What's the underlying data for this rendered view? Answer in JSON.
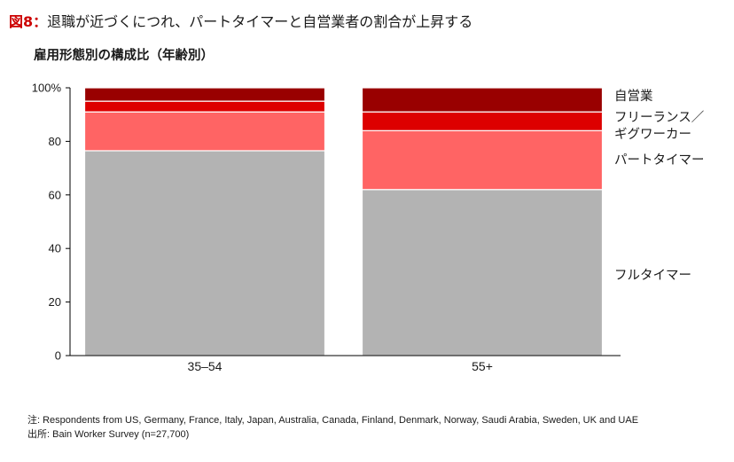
{
  "figure": {
    "label": "図8：",
    "title": "退職が近づくにつれ、パートタイマーと自営業者の割合が上昇する",
    "subtitle": "雇用形態別の構成比（年齢別）"
  },
  "notes": {
    "note": "注: Respondents from US, Germany, France, Italy, Japan, Australia, Canada, Finland, Denmark, Norway, Saudi Arabia, Sweden, UK and UAE",
    "source": "出所: Bain Worker Survey (n=27,700)"
  },
  "chart_data": {
    "type": "bar",
    "stacked": true,
    "title": "雇用形態別の構成比（年齢別）",
    "xlabel": "",
    "ylabel": "",
    "categories": [
      "35–54",
      "55+"
    ],
    "ylim": [
      0,
      100
    ],
    "yticks": [
      0,
      20,
      40,
      60,
      80,
      100
    ],
    "ytick_labels": [
      "0",
      "20",
      "40",
      "60",
      "80",
      "100%"
    ],
    "grid": false,
    "legend_position": "right, labels aligned with top bar segments",
    "series": [
      {
        "name": "フルタイマー",
        "values": [
          76.5,
          62
        ],
        "color": "#b3b3b3"
      },
      {
        "name": "パートタイマー",
        "values": [
          14.5,
          22
        ],
        "color": "#ff6464"
      },
      {
        "name": "フリーランス／ギグワーカー",
        "label_lines": [
          "フリーランス／",
          "ギグワーカー"
        ],
        "values": [
          4,
          7
        ],
        "color": "#dd0000"
      },
      {
        "name": "自営業",
        "values": [
          5,
          9
        ],
        "color": "#990000"
      }
    ]
  }
}
